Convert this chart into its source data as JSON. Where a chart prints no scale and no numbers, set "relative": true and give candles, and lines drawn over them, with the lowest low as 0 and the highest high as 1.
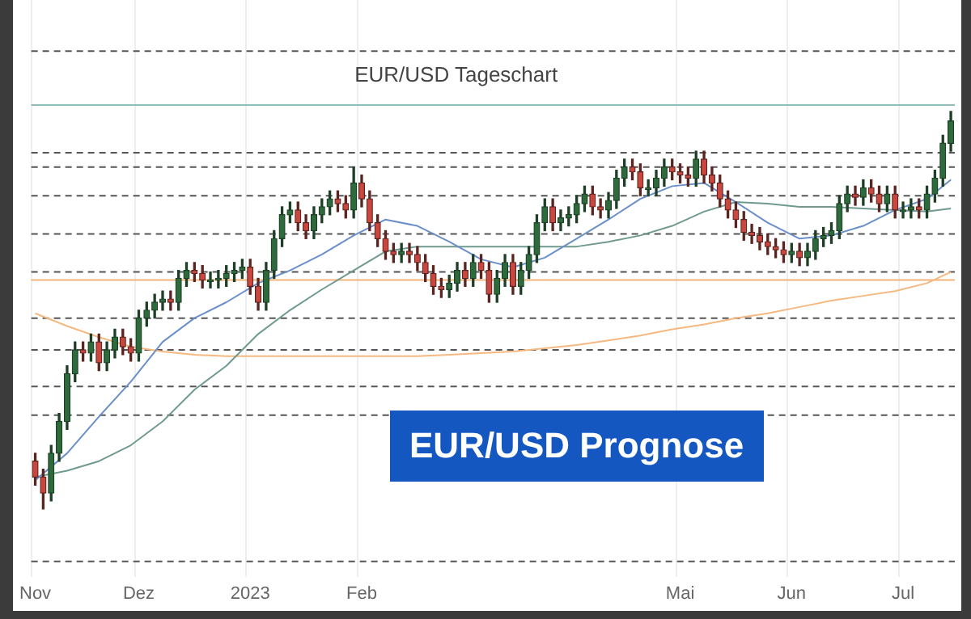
{
  "chart_data": {
    "type": "candlestick",
    "title": "EUR/USD Tageschart",
    "relative": true,
    "tick_labels": "x",
    "grid": "x",
    "legend": false,
    "annotations": [
      "EUR/USD Prognose"
    ],
    "categories": [
      "Nov",
      null,
      null,
      null,
      null,
      null,
      null,
      null,
      null,
      null,
      null,
      null,
      null,
      "Dez",
      null,
      null,
      null,
      null,
      null,
      null,
      null,
      null,
      null,
      null,
      null,
      null,
      null,
      "2023",
      null,
      null,
      null,
      null,
      null,
      null,
      null,
      null,
      null,
      null,
      null,
      null,
      null,
      "Feb",
      null,
      null,
      null,
      null,
      null,
      null,
      null,
      null,
      null,
      null,
      null,
      null,
      null,
      null,
      null,
      null,
      null,
      null,
      null,
      null,
      null,
      null,
      null,
      null,
      null,
      null,
      null,
      null,
      null,
      null,
      null,
      null,
      null,
      null,
      null,
      null,
      null,
      null,
      null,
      "Mai",
      null,
      null,
      null,
      null,
      null,
      null,
      null,
      null,
      null,
      null,
      null,
      null,
      null,
      "Jun",
      null,
      null,
      null,
      null,
      null,
      null,
      null,
      null,
      null,
      null,
      null,
      null,
      null,
      "Jul",
      null,
      null,
      null,
      null,
      null,
      null
    ],
    "ohlc": [
      [
        0.12,
        0.14,
        0.06,
        0.08
      ],
      [
        0.08,
        0.1,
        0,
        0.04
      ],
      [
        0.04,
        0.16,
        0.02,
        0.14
      ],
      [
        0.14,
        0.24,
        0.12,
        0.22
      ],
      [
        0.22,
        0.36,
        0.2,
        0.34
      ],
      [
        0.34,
        0.42,
        0.32,
        0.4
      ],
      [
        0.4,
        0.42,
        0.372,
        0.392
      ],
      [
        0.392,
        0.44,
        0.372,
        0.42
      ],
      [
        0.42,
        0.44,
        0.348,
        0.368
      ],
      [
        0.368,
        0.42,
        0.348,
        0.4
      ],
      [
        0.4,
        0.452,
        0.38,
        0.432
      ],
      [
        0.432,
        0.452,
        0.388,
        0.408
      ],
      [
        0.408,
        0.428,
        0.372,
        0.392
      ],
      [
        0.392,
        0.5,
        0.372,
        0.48
      ],
      [
        0.48,
        0.52,
        0.46,
        0.5
      ],
      [
        0.5,
        0.54,
        0.48,
        0.52
      ],
      [
        0.52,
        0.548,
        0.5,
        0.528
      ],
      [
        0.528,
        0.548,
        0.5,
        0.52
      ],
      [
        0.52,
        0.6,
        0.5,
        0.58
      ],
      [
        0.58,
        0.62,
        0.56,
        0.6
      ],
      [
        0.6,
        0.62,
        0.572,
        0.592
      ],
      [
        0.592,
        0.612,
        0.556,
        0.576
      ],
      [
        0.576,
        0.596,
        0.556,
        0.576
      ],
      [
        0.576,
        0.6,
        0.556,
        0.58
      ],
      [
        0.58,
        0.612,
        0.56,
        0.592
      ],
      [
        0.592,
        0.62,
        0.572,
        0.6
      ],
      [
        0.6,
        0.628,
        0.58,
        0.608
      ],
      [
        0.608,
        0.628,
        0.54,
        0.56
      ],
      [
        0.56,
        0.58,
        0.5,
        0.52
      ],
      [
        0.52,
        0.62,
        0.5,
        0.6
      ],
      [
        0.6,
        0.7,
        0.58,
        0.68
      ],
      [
        0.68,
        0.76,
        0.66,
        0.74
      ],
      [
        0.74,
        0.772,
        0.72,
        0.752
      ],
      [
        0.752,
        0.772,
        0.7,
        0.72
      ],
      [
        0.72,
        0.74,
        0.68,
        0.7
      ],
      [
        0.7,
        0.76,
        0.68,
        0.74
      ],
      [
        0.74,
        0.78,
        0.72,
        0.76
      ],
      [
        0.76,
        0.8,
        0.74,
        0.78
      ],
      [
        0.78,
        0.8,
        0.748,
        0.768
      ],
      [
        0.768,
        0.788,
        0.732,
        0.752
      ],
      [
        0.752,
        0.86,
        0.732,
        0.82
      ],
      [
        0.82,
        0.84,
        0.76,
        0.78
      ],
      [
        0.78,
        0.8,
        0.7,
        0.72
      ],
      [
        0.72,
        0.74,
        0.66,
        0.68
      ],
      [
        0.68,
        0.7,
        0.628,
        0.648
      ],
      [
        0.648,
        0.668,
        0.62,
        0.64
      ],
      [
        0.64,
        0.668,
        0.62,
        0.648
      ],
      [
        0.648,
        0.668,
        0.62,
        0.64
      ],
      [
        0.64,
        0.66,
        0.6,
        0.62
      ],
      [
        0.62,
        0.64,
        0.572,
        0.592
      ],
      [
        0.592,
        0.612,
        0.54,
        0.56
      ],
      [
        0.56,
        0.58,
        0.532,
        0.552
      ],
      [
        0.552,
        0.588,
        0.532,
        0.568
      ],
      [
        0.568,
        0.62,
        0.548,
        0.6
      ],
      [
        0.6,
        0.62,
        0.56,
        0.58
      ],
      [
        0.58,
        0.64,
        0.56,
        0.62
      ],
      [
        0.62,
        0.64,
        0.58,
        0.6
      ],
      [
        0.6,
        0.62,
        0.52,
        0.54
      ],
      [
        0.54,
        0.6,
        0.52,
        0.58
      ],
      [
        0.58,
        0.64,
        0.56,
        0.62
      ],
      [
        0.62,
        0.64,
        0.54,
        0.56
      ],
      [
        0.56,
        0.62,
        0.54,
        0.6
      ],
      [
        0.6,
        0.66,
        0.58,
        0.64
      ],
      [
        0.64,
        0.74,
        0.62,
        0.72
      ],
      [
        0.72,
        0.78,
        0.7,
        0.76
      ],
      [
        0.76,
        0.78,
        0.7,
        0.72
      ],
      [
        0.72,
        0.752,
        0.7,
        0.732
      ],
      [
        0.732,
        0.76,
        0.712,
        0.74
      ],
      [
        0.74,
        0.788,
        0.72,
        0.768
      ],
      [
        0.768,
        0.812,
        0.748,
        0.792
      ],
      [
        0.792,
        0.812,
        0.74,
        0.76
      ],
      [
        0.76,
        0.78,
        0.732,
        0.752
      ],
      [
        0.752,
        0.796,
        0.732,
        0.776
      ],
      [
        0.776,
        0.852,
        0.756,
        0.832
      ],
      [
        0.832,
        0.88,
        0.812,
        0.86
      ],
      [
        0.86,
        0.88,
        0.828,
        0.848
      ],
      [
        0.848,
        0.868,
        0.788,
        0.808
      ],
      [
        0.808,
        0.828,
        0.788,
        0.808
      ],
      [
        0.808,
        0.852,
        0.788,
        0.832
      ],
      [
        0.832,
        0.88,
        0.812,
        0.86
      ],
      [
        0.86,
        0.88,
        0.828,
        0.848
      ],
      [
        0.848,
        0.868,
        0.82,
        0.84
      ],
      [
        0.84,
        0.86,
        0.812,
        0.832
      ],
      [
        0.832,
        0.9,
        0.812,
        0.88
      ],
      [
        0.88,
        0.9,
        0.82,
        0.84
      ],
      [
        0.84,
        0.86,
        0.8,
        0.82
      ],
      [
        0.82,
        0.84,
        0.76,
        0.78
      ],
      [
        0.78,
        0.8,
        0.732,
        0.752
      ],
      [
        0.752,
        0.772,
        0.708,
        0.728
      ],
      [
        0.728,
        0.748,
        0.676,
        0.696
      ],
      [
        0.696,
        0.716,
        0.668,
        0.688
      ],
      [
        0.688,
        0.708,
        0.652,
        0.672
      ],
      [
        0.672,
        0.692,
        0.64,
        0.66
      ],
      [
        0.66,
        0.68,
        0.632,
        0.652
      ],
      [
        0.652,
        0.672,
        0.62,
        0.64
      ],
      [
        0.64,
        0.668,
        0.62,
        0.648
      ],
      [
        0.648,
        0.668,
        0.612,
        0.632
      ],
      [
        0.632,
        0.668,
        0.612,
        0.648
      ],
      [
        0.648,
        0.7,
        0.628,
        0.68
      ],
      [
        0.68,
        0.708,
        0.66,
        0.688
      ],
      [
        0.688,
        0.72,
        0.668,
        0.7
      ],
      [
        0.7,
        0.788,
        0.68,
        0.768
      ],
      [
        0.768,
        0.812,
        0.748,
        0.792
      ],
      [
        0.792,
        0.812,
        0.764,
        0.784
      ],
      [
        0.784,
        0.828,
        0.764,
        0.808
      ],
      [
        0.808,
        0.828,
        0.772,
        0.792
      ],
      [
        0.792,
        0.812,
        0.748,
        0.768
      ],
      [
        0.768,
        0.812,
        0.748,
        0.792
      ],
      [
        0.792,
        0.812,
        0.732,
        0.752
      ],
      [
        0.752,
        0.772,
        0.732,
        0.752
      ],
      [
        0.752,
        0.78,
        0.732,
        0.76
      ],
      [
        0.76,
        0.78,
        0.732,
        0.752
      ],
      [
        0.752,
        0.812,
        0.732,
        0.792
      ],
      [
        0.792,
        0.852,
        0.772,
        0.832
      ],
      [
        0.832,
        0.94,
        0.812,
        0.92
      ],
      [
        0.92,
        1,
        0.9,
        0.976
      ]
    ],
    "series": [
      {
        "type": "line",
        "color": "#6a8fc9",
        "values": [
          0.072,
          null,
          null,
          null,
          0.14,
          null,
          null,
          null,
          0.232,
          null,
          null,
          null,
          0.32,
          null,
          null,
          null,
          0.42,
          null,
          null,
          null,
          0.48,
          null,
          null,
          null,
          0.52,
          null,
          null,
          null,
          0.568,
          null,
          null,
          null,
          0.6,
          null,
          null,
          null,
          0.64,
          null,
          null,
          null,
          0.688,
          null,
          null,
          null,
          0.728,
          null,
          null,
          null,
          0.712,
          null,
          null,
          null,
          0.672,
          null,
          null,
          null,
          0.628,
          null,
          null,
          null,
          0.608,
          null,
          null,
          null,
          0.632,
          null,
          null,
          null,
          0.68,
          null,
          null,
          null,
          0.728,
          null,
          null,
          null,
          0.78,
          null,
          null,
          null,
          0.812,
          null,
          null,
          null,
          0.82,
          null,
          null,
          null,
          0.772,
          null,
          null,
          null,
          0.72,
          null,
          null,
          null,
          0.68,
          null,
          null,
          null,
          0.688,
          null,
          null,
          null,
          0.712,
          null,
          null,
          null,
          0.752,
          null,
          null,
          null,
          0.78,
          null,
          null,
          0.828
        ]
      },
      {
        "type": "line",
        "color": "#6f9a8f",
        "values": [
          0.08,
          null,
          null,
          null,
          0.096,
          null,
          null,
          null,
          0.12,
          null,
          null,
          null,
          0.16,
          null,
          null,
          null,
          0.22,
          null,
          null,
          null,
          0.3,
          null,
          null,
          null,
          0.36,
          null,
          null,
          null,
          0.44,
          null,
          null,
          null,
          0.5,
          null,
          null,
          null,
          0.552,
          null,
          null,
          null,
          0.6,
          null,
          null,
          null,
          0.648,
          null,
          null,
          null,
          0.66,
          null,
          null,
          null,
          0.66,
          null,
          null,
          null,
          0.66,
          null,
          null,
          null,
          0.66,
          null,
          null,
          null,
          0.66,
          null,
          null,
          null,
          0.66,
          null,
          null,
          null,
          0.672,
          null,
          null,
          null,
          0.688,
          null,
          null,
          null,
          0.712,
          null,
          null,
          null,
          0.748,
          null,
          null,
          null,
          0.772,
          null,
          null,
          null,
          0.768,
          null,
          null,
          null,
          0.76,
          null,
          null,
          null,
          0.76,
          null,
          null,
          null,
          0.756,
          null,
          null,
          null,
          0.752,
          null,
          null,
          null,
          0.748,
          null,
          null,
          0.756
        ]
      },
      {
        "type": "line",
        "color": "#f5b880",
        "values": [
          0.492,
          null,
          null,
          null,
          0.46,
          null,
          null,
          null,
          0.432,
          null,
          null,
          null,
          0.408,
          null,
          null,
          null,
          0.396,
          null,
          null,
          null,
          0.388,
          null,
          null,
          null,
          0.384,
          null,
          null,
          null,
          0.384,
          null,
          null,
          null,
          0.384,
          null,
          null,
          null,
          0.384,
          null,
          null,
          null,
          0.384,
          null,
          null,
          null,
          0.384,
          null,
          null,
          null,
          0.384,
          null,
          null,
          null,
          0.388,
          null,
          null,
          null,
          0.392,
          null,
          null,
          null,
          0.396,
          null,
          null,
          null,
          0.404,
          null,
          null,
          null,
          0.412,
          null,
          null,
          null,
          0.424,
          null,
          null,
          null,
          0.436,
          null,
          null,
          null,
          0.452,
          null,
          null,
          null,
          0.464,
          null,
          null,
          null,
          0.48,
          null,
          null,
          null,
          0.492,
          null,
          null,
          null,
          0.508,
          null,
          null,
          null,
          0.524,
          null,
          null,
          null,
          0.536,
          null,
          null,
          null,
          0.548,
          null,
          null,
          null,
          0.568,
          null,
          null,
          0.596
        ]
      }
    ],
    "ref_lines": [
      {
        "axis": "y",
        "value": 1.152,
        "line_style": "dashed",
        "color": "#555555"
      },
      {
        "axis": "y",
        "value": 1.016,
        "line_style": "solid",
        "color": "#8fbcbc"
      },
      {
        "axis": "y",
        "value": 0.896,
        "line_style": "dashed",
        "color": "#555555"
      },
      {
        "axis": "y",
        "value": 0.86,
        "line_style": "dashed",
        "color": "#555555"
      },
      {
        "axis": "y",
        "value": 0.788,
        "line_style": "dashed",
        "color": "#555555"
      },
      {
        "axis": "y",
        "value": 0.692,
        "line_style": "dashed",
        "color": "#555555"
      },
      {
        "axis": "y",
        "value": 0.596,
        "line_style": "dashed",
        "color": "#555555"
      },
      {
        "axis": "y",
        "value": 0.576,
        "line_style": "solid",
        "color": "#f3b47a"
      },
      {
        "axis": "y",
        "value": 0.48,
        "line_style": "dashed",
        "color": "#555555"
      },
      {
        "axis": "y",
        "value": 0.4,
        "line_style": "dashed",
        "color": "#555555"
      },
      {
        "axis": "y",
        "value": 0.308,
        "line_style": "dashed",
        "color": "#555555"
      },
      {
        "axis": "y",
        "value": 0.236,
        "line_style": "dashed",
        "color": "#555555"
      },
      {
        "axis": "y",
        "value": -0.132,
        "line_style": "dashed",
        "color": "#555555"
      }
    ]
  }
}
